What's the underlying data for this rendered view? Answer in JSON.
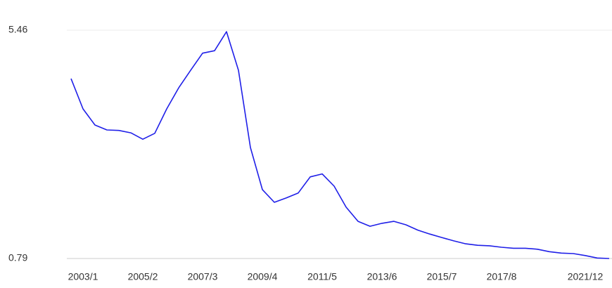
{
  "chart_data": {
    "type": "line",
    "x": [
      "2002/8",
      "2003/1",
      "2003/6",
      "2003/11",
      "2004/4",
      "2004/9",
      "2005/2",
      "2005/7",
      "2005/12",
      "2006/5",
      "2006/10",
      "2007/3",
      "2007/8",
      "2008/1",
      "2008/6",
      "2008/11",
      "2009/4",
      "2009/9",
      "2010/2",
      "2010/7",
      "2010/12",
      "2011/5",
      "2011/10",
      "2012/3",
      "2012/8",
      "2013/1",
      "2013/6",
      "2013/11",
      "2014/4",
      "2014/9",
      "2015/2",
      "2015/7",
      "2015/12",
      "2016/5",
      "2016/10",
      "2017/3",
      "2017/8",
      "2018/1",
      "2018/6",
      "2018/11",
      "2019/4",
      "2019/9",
      "2020/7",
      "2021/12",
      "2022/4",
      "2022/8"
    ],
    "series": [
      {
        "color": "#1f1fe8",
        "values": [
          4.47,
          3.85,
          3.52,
          3.42,
          3.41,
          3.36,
          3.23,
          3.35,
          3.85,
          4.28,
          4.64,
          4.99,
          5.04,
          5.43,
          4.64,
          3.06,
          2.2,
          1.94,
          2.03,
          2.13,
          2.46,
          2.52,
          2.27,
          1.84,
          1.55,
          1.45,
          1.51,
          1.55,
          1.48,
          1.37,
          1.29,
          1.22,
          1.15,
          1.09,
          1.06,
          1.05,
          1.02,
          1.0,
          1.0,
          0.98,
          0.93,
          0.9,
          0.89,
          0.85,
          0.8,
          0.79
        ]
      }
    ],
    "xticks": [
      "2003/1",
      "2005/2",
      "2007/3",
      "2009/4",
      "2011/5",
      "2013/6",
      "2015/7",
      "2017/8",
      "2021/12"
    ],
    "ylim": [
      0.79,
      5.46
    ],
    "yticks": [
      0.79,
      5.46
    ],
    "grid": true
  }
}
